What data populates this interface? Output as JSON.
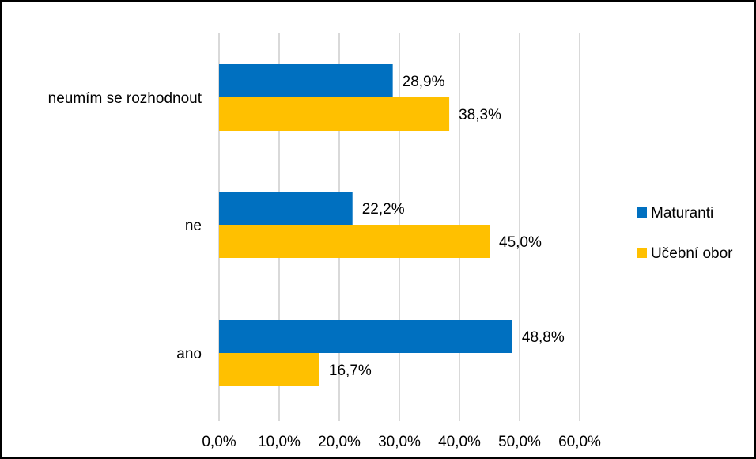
{
  "chart_data": {
    "type": "bar",
    "orientation": "horizontal",
    "title": "",
    "xlabel": "",
    "ylabel": "",
    "categories": [
      "neumím se rozhodnout",
      "ne",
      "ano"
    ],
    "series": [
      {
        "name": "Maturanti",
        "color": "#0070C0",
        "values": [
          28.9,
          22.2,
          48.8
        ],
        "labels": [
          "28,9%",
          "22,2%",
          "48,8%"
        ]
      },
      {
        "name": "Učební obor",
        "color": "#FFC000",
        "values": [
          38.3,
          45.0,
          16.7
        ],
        "labels": [
          "38,3%",
          "45,0%",
          "16,7%"
        ]
      }
    ],
    "xlim": [
      0,
      60
    ],
    "x_ticks": [
      0,
      10,
      20,
      30,
      40,
      50,
      60
    ],
    "x_tick_labels": [
      "0,0%",
      "10,0%",
      "20,0%",
      "30,0%",
      "40,0%",
      "50,0%",
      "60,0%"
    ],
    "grid": true,
    "grid_color": "#D9D9D9",
    "legend_position": "right"
  }
}
